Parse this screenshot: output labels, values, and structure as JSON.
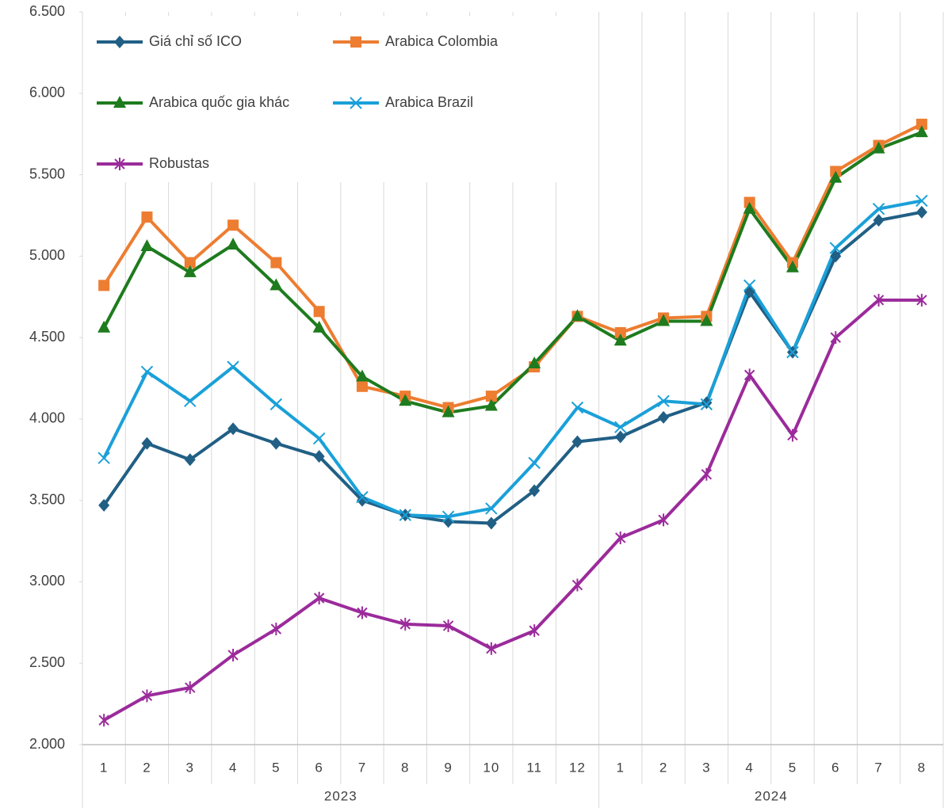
{
  "chart_data": {
    "type": "line",
    "category_groups": [
      {
        "label": "2023",
        "categories": [
          "1",
          "2",
          "3",
          "4",
          "5",
          "6",
          "7",
          "8",
          "9",
          "10",
          "11",
          "12"
        ]
      },
      {
        "label": "2024",
        "categories": [
          "1",
          "2",
          "3",
          "4",
          "5",
          "6",
          "7",
          "8"
        ]
      }
    ],
    "series": [
      {
        "name": "Giá chỉ số ICO",
        "color": "#215f85",
        "marker": "diamond",
        "values": [
          3470,
          3850,
          3750,
          3940,
          3850,
          3770,
          3500,
          3410,
          3370,
          3360,
          3560,
          3860,
          3890,
          4010,
          4100,
          4780,
          4410,
          5000,
          5220,
          5270
        ]
      },
      {
        "name": "Arabica Colombia",
        "color": "#ed7d31",
        "marker": "square",
        "values": [
          4820,
          5240,
          4960,
          5190,
          4960,
          4660,
          4200,
          4140,
          4070,
          4140,
          4320,
          4630,
          4530,
          4620,
          4630,
          5330,
          4960,
          5520,
          5680,
          5810
        ]
      },
      {
        "name": "Arabica quốc gia khác",
        "color": "#1e7b1e",
        "marker": "triangle",
        "values": [
          4560,
          5060,
          4900,
          5070,
          4820,
          4560,
          4260,
          4110,
          4040,
          4080,
          4340,
          4630,
          4480,
          4600,
          4600,
          5290,
          4930,
          5480,
          5660,
          5760
        ]
      },
      {
        "name": "Arabica Brazil",
        "color": "#1aa0d8",
        "marker": "x",
        "values": [
          3760,
          4290,
          4110,
          4320,
          4090,
          3880,
          3520,
          3410,
          3400,
          3450,
          3730,
          4070,
          3950,
          4110,
          4090,
          4820,
          4410,
          5050,
          5290,
          5340
        ]
      },
      {
        "name": "Robustas",
        "color": "#9b2b9b",
        "marker": "asterisk",
        "values": [
          2150,
          2300,
          2350,
          2550,
          2710,
          2900,
          2810,
          2740,
          2730,
          2590,
          2700,
          2980,
          3270,
          3380,
          3660,
          4270,
          3900,
          4500,
          4730,
          4730
        ]
      }
    ],
    "ylim": [
      2000,
      6500
    ],
    "yticks": [
      {
        "value": 2000,
        "label": "2.000"
      },
      {
        "value": 2500,
        "label": "2.500"
      },
      {
        "value": 3000,
        "label": "3.000"
      },
      {
        "value": 3500,
        "label": "3.500"
      },
      {
        "value": 4000,
        "label": "4.000"
      },
      {
        "value": 4500,
        "label": "4.500"
      },
      {
        "value": 5000,
        "label": "5.000"
      },
      {
        "value": 5500,
        "label": "5.500"
      },
      {
        "value": 6000,
        "label": "6.000"
      },
      {
        "value": 6500,
        "label": "6.500"
      }
    ],
    "grid": "vertical"
  }
}
